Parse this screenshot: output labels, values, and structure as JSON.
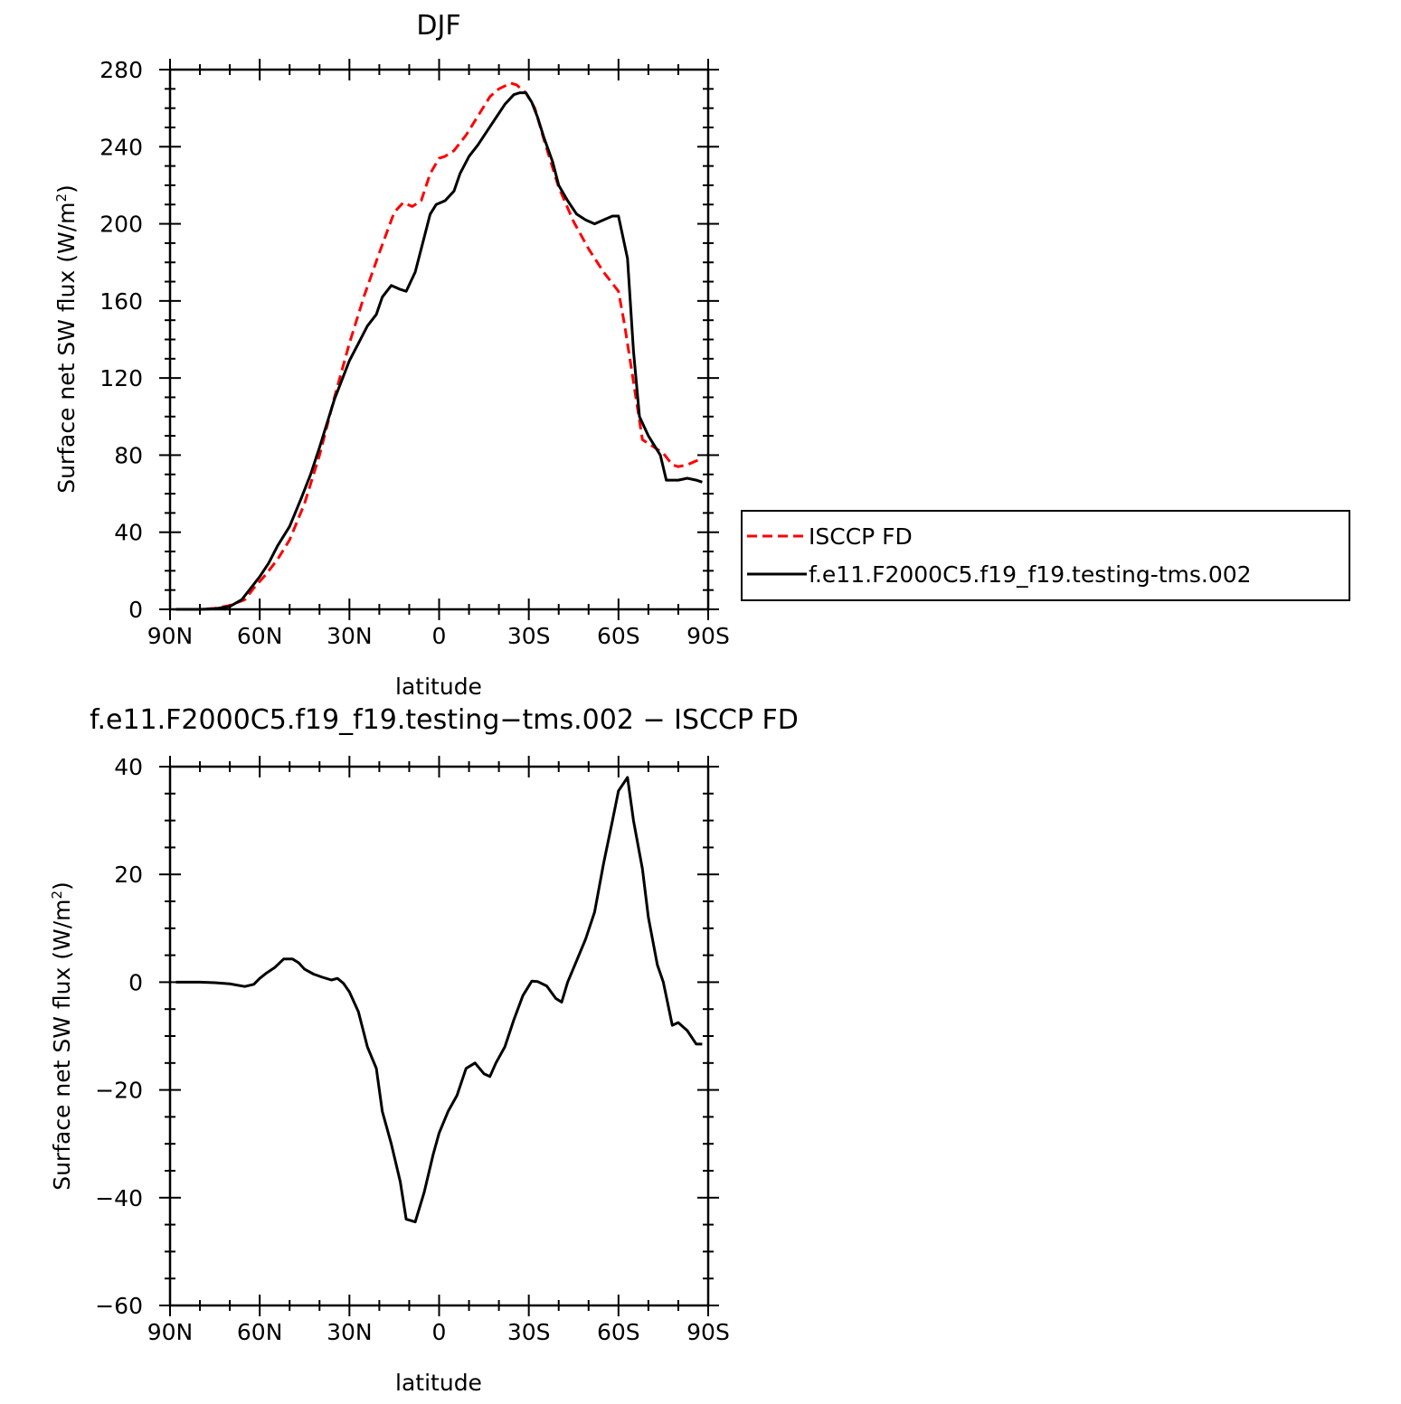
{
  "chart_data": [
    {
      "type": "line",
      "title": "DJF",
      "xlabel": "latitude",
      "ylabel": "Surface net SW flux (W/m",
      "ylabel_sup": "2",
      "ylabel_close": ")",
      "xlim": [
        -90,
        90
      ],
      "ylim": [
        0,
        280
      ],
      "x_ticks": [
        -90,
        -60,
        -30,
        0,
        30,
        60,
        90
      ],
      "x_tick_labels": [
        "90N",
        "60N",
        "30N",
        "0",
        "30S",
        "60S",
        "90S"
      ],
      "y_ticks": [
        0,
        40,
        80,
        120,
        160,
        200,
        240,
        280
      ],
      "y_tick_labels": [
        "0",
        "40",
        "80",
        "120",
        "160",
        "200",
        "240",
        "280"
      ],
      "legend_position": "right",
      "series": [
        {
          "name": "ISCCP FD",
          "color": "#ff0000",
          "style": "dashed",
          "x": [
            -88,
            -85,
            -80,
            -75,
            -70,
            -65,
            -62,
            -58,
            -54,
            -50,
            -45,
            -40,
            -35,
            -30,
            -25,
            -20,
            -15,
            -12,
            -9,
            -6,
            -3,
            0,
            2,
            5,
            9,
            13,
            17,
            20,
            24,
            26,
            29,
            32,
            35,
            40,
            45,
            50,
            55,
            60,
            62,
            65,
            68,
            70,
            73,
            75,
            78,
            80,
            83,
            86,
            88
          ],
          "y": [
            0,
            0,
            0,
            0.5,
            2,
            5,
            11,
            18,
            26,
            36,
            55,
            80,
            110,
            138,
            163,
            185,
            206,
            211,
            209,
            212,
            226,
            234,
            235,
            238,
            246,
            256,
            266,
            270,
            273,
            272,
            268,
            260,
            244,
            219,
            201,
            187,
            175,
            165,
            148,
            118,
            88,
            86,
            83,
            81,
            75,
            74,
            75,
            77,
            78
          ]
        },
        {
          "name": "f.e11.F2000C5.f19_f19.testing-tms.002",
          "color": "#000000",
          "style": "solid",
          "x": [
            -88,
            -85,
            -80,
            -75,
            -70,
            -66,
            -63,
            -60,
            -57,
            -54,
            -50,
            -46,
            -43,
            -40,
            -35,
            -30,
            -27,
            -24,
            -21,
            -19,
            -16,
            -13,
            -11,
            -8,
            -5,
            -3,
            -1,
            2,
            5,
            7,
            10,
            13,
            16,
            19,
            22,
            25,
            27,
            29,
            31,
            33,
            35,
            38,
            40,
            43,
            46,
            49,
            52,
            55,
            58,
            60,
            63,
            65,
            67,
            70,
            72,
            74,
            76,
            78,
            80,
            83,
            86,
            88
          ],
          "y": [
            0,
            0,
            0,
            0.3,
            1.5,
            5,
            11,
            17,
            24,
            33,
            43,
            58,
            70,
            84,
            109,
            129,
            138,
            147,
            153,
            162,
            168,
            166,
            165,
            175,
            193,
            205,
            210,
            212,
            217,
            226,
            235,
            241,
            248,
            255,
            262,
            267,
            268,
            268,
            263,
            255,
            245,
            232,
            220,
            212,
            205,
            202,
            200,
            202,
            204,
            204,
            182,
            134,
            100,
            90,
            85,
            80,
            67,
            67,
            67,
            68,
            67,
            66
          ]
        }
      ]
    },
    {
      "type": "line",
      "title": "f.e11.F2000C5.f19_f19.testing−tms.002 − ISCCP FD",
      "xlabel": "latitude",
      "ylabel": "Surface net SW flux (W/m",
      "ylabel_sup": "2",
      "ylabel_close": ")",
      "xlim": [
        -90,
        90
      ],
      "ylim": [
        -60,
        40
      ],
      "x_ticks": [
        -90,
        -60,
        -30,
        0,
        30,
        60,
        90
      ],
      "x_tick_labels": [
        "90N",
        "60N",
        "30N",
        "0",
        "30S",
        "60S",
        "90S"
      ],
      "y_ticks": [
        -60,
        -40,
        -20,
        0,
        20,
        40
      ],
      "y_tick_labels": [
        "−60",
        "−40",
        "−20",
        "0",
        "20",
        "40"
      ],
      "series": [
        {
          "name": "",
          "color": "#000000",
          "style": "solid",
          "x": [
            -88,
            -85,
            -80,
            -75,
            -70,
            -65,
            -62,
            -60,
            -58,
            -55,
            -52,
            -49,
            -47,
            -45,
            -42,
            -39,
            -36,
            -34,
            -32,
            -30,
            -27,
            -24,
            -21,
            -19,
            -16,
            -13,
            -11,
            -8,
            -5,
            -2,
            0,
            3,
            6,
            9,
            12,
            15,
            17,
            19,
            22,
            25,
            28,
            31,
            33,
            36,
            39,
            41,
            43,
            46,
            49,
            52,
            55,
            58,
            60,
            63,
            65,
            68,
            70,
            73,
            75,
            78,
            80,
            83,
            86,
            88
          ],
          "y": [
            0,
            0,
            0,
            -0.1,
            -0.3,
            -0.8,
            -0.4,
            0.7,
            1.6,
            2.7,
            4.3,
            4.3,
            3.6,
            2.4,
            1.5,
            0.9,
            0.4,
            0.7,
            -0.2,
            -1.8,
            -5.5,
            -12,
            -16,
            -24,
            -30,
            -37,
            -44,
            -44.5,
            -39,
            -32,
            -28,
            -24,
            -21,
            -16,
            -15,
            -17,
            -17.5,
            -15,
            -12,
            -7,
            -2.5,
            0.2,
            0.1,
            -0.7,
            -3,
            -3.7,
            0,
            4,
            8,
            13,
            22,
            30,
            35.5,
            38,
            30,
            21,
            12,
            3.2,
            0,
            -8,
            -7.5,
            -9,
            -11.5,
            -11.5
          ]
        }
      ]
    }
  ]
}
